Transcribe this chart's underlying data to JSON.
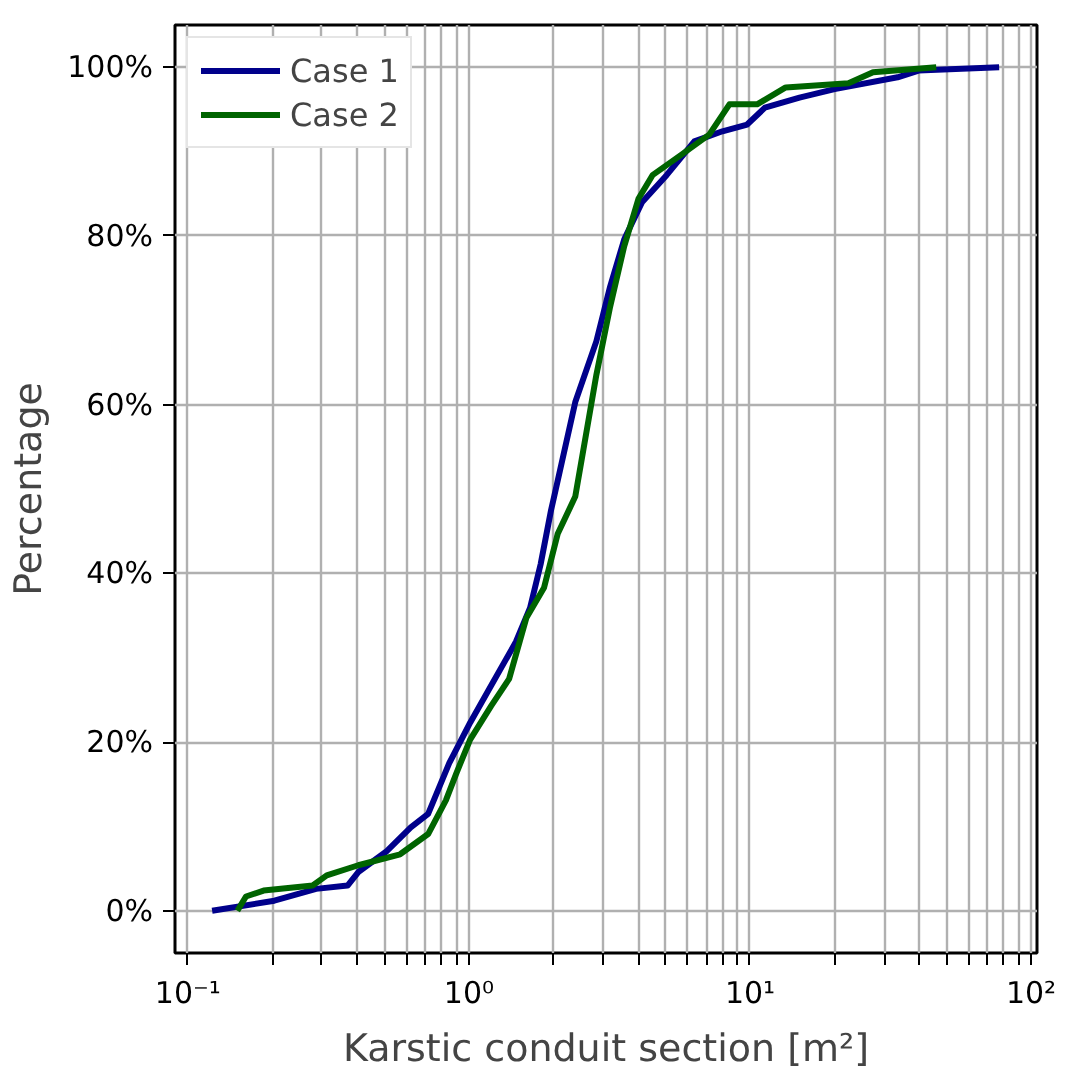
{
  "chart_data": {
    "type": "line",
    "xlabel": "Karstic conduit section [m²]",
    "ylabel": "Percentage",
    "log": "x",
    "grid": true,
    "legend": "top left",
    "line_style": "solid",
    "xlim": [
      0.09,
      105
    ],
    "ylim": [
      -5,
      105
    ],
    "xticks": [
      {
        "value": 0.1,
        "label": "10⁻¹"
      },
      {
        "value": 0.2,
        "label": null
      },
      {
        "value": 0.3,
        "label": null
      },
      {
        "value": 0.4,
        "label": null
      },
      {
        "value": 0.5,
        "label": null
      },
      {
        "value": 0.6,
        "label": null
      },
      {
        "value": 0.7,
        "label": null
      },
      {
        "value": 0.8,
        "label": null
      },
      {
        "value": 0.9,
        "label": null
      },
      {
        "value": 1,
        "label": "10⁰"
      },
      {
        "value": 2,
        "label": null
      },
      {
        "value": 3,
        "label": null
      },
      {
        "value": 4,
        "label": null
      },
      {
        "value": 5,
        "label": null
      },
      {
        "value": 6,
        "label": null
      },
      {
        "value": 7,
        "label": null
      },
      {
        "value": 8,
        "label": null
      },
      {
        "value": 9,
        "label": null
      },
      {
        "value": 10,
        "label": "10¹"
      },
      {
        "value": 20,
        "label": null
      },
      {
        "value": 30,
        "label": null
      },
      {
        "value": 40,
        "label": null
      },
      {
        "value": 50,
        "label": null
      },
      {
        "value": 60,
        "label": null
      },
      {
        "value": 70,
        "label": null
      },
      {
        "value": 80,
        "label": null
      },
      {
        "value": 90,
        "label": null
      },
      {
        "value": 100,
        "label": "10²"
      }
    ],
    "yticks": [
      {
        "value": 0,
        "label": "0%"
      },
      {
        "value": 20,
        "label": "20%"
      },
      {
        "value": 40,
        "label": "40%"
      },
      {
        "value": 60,
        "label": "60%"
      },
      {
        "value": 80,
        "label": "80%"
      },
      {
        "value": 100,
        "label": "100%"
      }
    ],
    "series": [
      {
        "name": "Case 1",
        "color": "#00008b",
        "x": [
          0.122,
          0.203,
          0.286,
          0.37,
          0.404,
          0.507,
          0.621,
          0.716,
          0.851,
          1.01,
          1.2,
          1.47,
          1.65,
          1.8,
          1.96,
          2.01,
          2.39,
          2.84,
          3.18,
          3.57,
          4.13,
          5.05,
          6.34,
          7.98,
          9.77,
          11.3,
          15.0,
          20.0,
          33.5,
          39.8,
          77
        ],
        "values": [
          0,
          1.2,
          2.6,
          3.0,
          4.6,
          7.0,
          9.9,
          11.5,
          17.5,
          22.3,
          26.7,
          31.9,
          35.9,
          41.1,
          47.5,
          49.1,
          60.3,
          67.5,
          74.0,
          79.6,
          84.0,
          87.2,
          91.2,
          92.4,
          93.2,
          95.2,
          96.4,
          97.4,
          98.8,
          99.6,
          100
        ]
      },
      {
        "name": "Case 2",
        "color": "#006400",
        "x": [
          0.15,
          0.161,
          0.186,
          0.278,
          0.312,
          0.404,
          0.569,
          0.716,
          0.828,
          0.902,
          1.01,
          1.2,
          1.39,
          1.6,
          1.85,
          2.07,
          2.39,
          2.84,
          3.18,
          3.57,
          4.01,
          4.5,
          5.69,
          7.16,
          8.45,
          10.6,
          13.4,
          22.4,
          27.4,
          46
        ],
        "values": [
          0,
          1.7,
          2.4,
          3.0,
          4.2,
          5.4,
          6.7,
          9.1,
          13.1,
          16.3,
          20.3,
          24.3,
          27.5,
          34.7,
          38.3,
          44.7,
          49.1,
          63.5,
          71.6,
          78.8,
          84.4,
          87.2,
          89.6,
          92.0,
          95.6,
          95.6,
          97.6,
          98.1,
          99.4,
          100
        ]
      }
    ]
  }
}
